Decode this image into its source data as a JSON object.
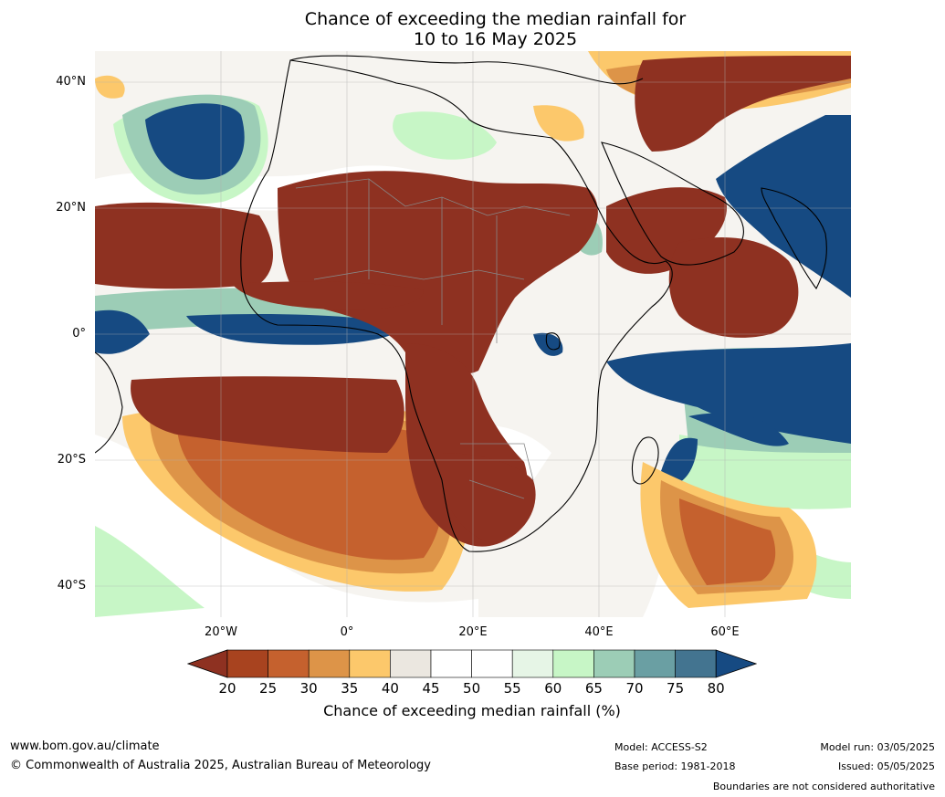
{
  "title": {
    "line1": "Chance of exceeding the median rainfall for",
    "line2": "10 to 16 May 2025"
  },
  "map": {
    "lat_labels": [
      "40°N",
      "20°N",
      "0°",
      "20°S",
      "40°S"
    ],
    "lon_labels": [
      "20°W",
      "0°",
      "20°E",
      "40°E",
      "60°E"
    ]
  },
  "legend": {
    "ticks": [
      "20",
      "25",
      "30",
      "35",
      "40",
      "45",
      "50",
      "55",
      "60",
      "65",
      "70",
      "75",
      "80"
    ],
    "label": "Chance of exceeding median rainfall (%)",
    "colors": [
      "#8e3121",
      "#a8431f",
      "#c5612e",
      "#dd9448",
      "#fcc86b",
      "#ebe7e0",
      "#ffffff",
      "#ffffff",
      "#e6f5e6",
      "#c7f6c6",
      "#9ccdb6",
      "#6a9fa3",
      "#437490",
      "#164a82"
    ]
  },
  "footer": {
    "website": "www.bom.gov.au/climate",
    "copyright": "© Commonwealth of Australia 2025, Australian Bureau of Meteorology",
    "model": "Model: ACCESS-S2",
    "base_period": "Base period: 1981-2018",
    "model_run": "Model run: 03/05/2025",
    "issued": "Issued: 05/05/2025",
    "disclaimer": "Boundaries are not considered authoritative"
  }
}
